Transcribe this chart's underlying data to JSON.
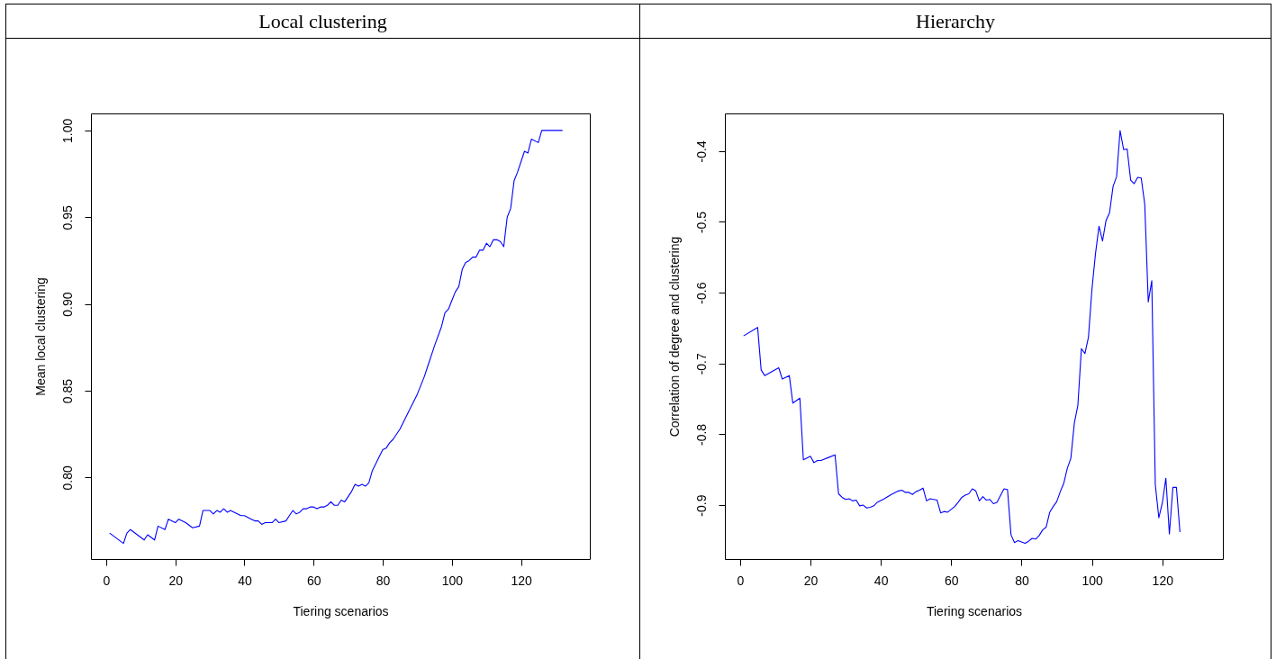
{
  "chart_data": [
    {
      "type": "line",
      "title": "Local clustering",
      "xlabel": "Tiering scenarios",
      "ylabel": "Mean local clustering",
      "xlim": [
        -4.4,
        139.9
      ],
      "ylim": [
        0.753,
        1.0098
      ],
      "xticks": [
        0,
        20,
        40,
        60,
        80,
        100,
        120
      ],
      "yticks": [
        {
          "value": 0.8,
          "label": "0.80"
        },
        {
          "value": 0.85,
          "label": "0.85"
        },
        {
          "value": 0.9,
          "label": "0.90"
        },
        {
          "value": 0.95,
          "label": "0.95"
        },
        {
          "value": 1.0,
          "label": "1.00"
        }
      ],
      "x": [
        1,
        5,
        6,
        7,
        11,
        12,
        14,
        15,
        17,
        18,
        20,
        21,
        23,
        25,
        27,
        28,
        30,
        31,
        32,
        33,
        34,
        35,
        36,
        37,
        39,
        40,
        41,
        42,
        43,
        44,
        45,
        46,
        48,
        49,
        50,
        52,
        53,
        54,
        55,
        56,
        57,
        58,
        59,
        60,
        61,
        62,
        63,
        64,
        65,
        66,
        67,
        68,
        69,
        71,
        72,
        73,
        74,
        75,
        76,
        77,
        78,
        79,
        80,
        81,
        82,
        83,
        84,
        85,
        86,
        88,
        90,
        92,
        93,
        95,
        97,
        98,
        99,
        100,
        101,
        102,
        103,
        104,
        105,
        106,
        107,
        108,
        109,
        110,
        111,
        112,
        113,
        114,
        115,
        116,
        117,
        118,
        119,
        121,
        122,
        123,
        125,
        126,
        132
      ],
      "series": [
        {
          "color": "#0000ff",
          "values": [
            0.768,
            0.762,
            0.768,
            0.77,
            0.764,
            0.767,
            0.764,
            0.772,
            0.77,
            0.776,
            0.774,
            0.776,
            0.774,
            0.771,
            0.772,
            0.781,
            0.781,
            0.779,
            0.781,
            0.78,
            0.782,
            0.78,
            0.781,
            0.78,
            0.778,
            0.778,
            0.777,
            0.776,
            0.775,
            0.775,
            0.773,
            0.774,
            0.774,
            0.776,
            0.774,
            0.775,
            0.778,
            0.781,
            0.779,
            0.78,
            0.782,
            0.782,
            0.783,
            0.783,
            0.782,
            0.783,
            0.783,
            0.784,
            0.786,
            0.784,
            0.784,
            0.787,
            0.786,
            0.792,
            0.796,
            0.795,
            0.796,
            0.795,
            0.797,
            0.804,
            0.808,
            0.812,
            0.816,
            0.817,
            0.82,
            0.822,
            0.825,
            0.828,
            0.832,
            0.84,
            0.848,
            0.858,
            0.864,
            0.876,
            0.887,
            0.895,
            0.897,
            0.902,
            0.907,
            0.91,
            0.92,
            0.924,
            0.925,
            0.927,
            0.927,
            0.931,
            0.931,
            0.935,
            0.933,
            0.937,
            0.937,
            0.936,
            0.933,
            0.95,
            0.955,
            0.971,
            0.976,
            0.988,
            0.987,
            0.995,
            0.993,
            1.0,
            1.0
          ]
        }
      ]
    },
    {
      "type": "line",
      "title": "Hierarchy",
      "xlabel": "Tiering scenarios",
      "ylabel": "Correlation of degree and clustering",
      "xlim": [
        -4.3,
        137.2
      ],
      "ylim": [
        -0.9762,
        -0.3468
      ],
      "xticks": [
        0,
        20,
        40,
        60,
        80,
        100,
        120
      ],
      "yticks": [
        -0.9,
        -0.8,
        -0.7,
        -0.6,
        -0.5,
        -0.4
      ],
      "x": [
        1,
        5,
        6,
        7,
        11,
        12,
        14,
        15,
        17,
        18,
        20,
        21,
        22,
        23,
        25,
        27,
        28,
        29,
        30,
        31,
        32,
        33,
        34,
        35,
        36,
        37,
        38,
        39,
        41,
        43,
        45,
        46,
        47,
        48,
        49,
        50,
        51,
        52,
        53,
        54,
        56,
        57,
        58,
        59,
        61,
        62,
        63,
        64,
        65,
        66,
        67,
        68,
        69,
        70,
        71,
        72,
        73,
        75,
        76,
        77,
        78,
        79,
        81,
        82,
        83,
        84,
        85,
        86,
        87,
        88,
        89,
        90,
        91,
        92,
        93,
        94,
        95,
        96,
        97,
        98,
        99,
        100,
        101,
        102,
        103,
        104,
        105,
        106,
        107,
        108,
        109,
        110,
        111,
        112,
        113,
        114,
        115,
        116,
        117,
        118,
        119,
        120,
        121,
        122,
        123,
        124,
        125
      ],
      "series": [
        {
          "color": "#0000ff",
          "values": [
            -0.661,
            -0.649,
            -0.709,
            -0.717,
            -0.706,
            -0.722,
            -0.717,
            -0.756,
            -0.749,
            -0.836,
            -0.831,
            -0.84,
            -0.837,
            -0.837,
            -0.833,
            -0.829,
            -0.884,
            -0.889,
            -0.892,
            -0.891,
            -0.894,
            -0.893,
            -0.901,
            -0.9,
            -0.904,
            -0.903,
            -0.901,
            -0.896,
            -0.891,
            -0.885,
            -0.88,
            -0.879,
            -0.882,
            -0.882,
            -0.885,
            -0.881,
            -0.879,
            -0.876,
            -0.894,
            -0.891,
            -0.893,
            -0.911,
            -0.909,
            -0.91,
            -0.902,
            -0.896,
            -0.889,
            -0.886,
            -0.884,
            -0.877,
            -0.88,
            -0.894,
            -0.888,
            -0.893,
            -0.892,
            -0.898,
            -0.896,
            -0.877,
            -0.878,
            -0.942,
            -0.953,
            -0.95,
            -0.954,
            -0.951,
            -0.947,
            -0.948,
            -0.943,
            -0.935,
            -0.931,
            -0.91,
            -0.902,
            -0.895,
            -0.881,
            -0.869,
            -0.848,
            -0.834,
            -0.784,
            -0.759,
            -0.679,
            -0.686,
            -0.663,
            -0.595,
            -0.545,
            -0.506,
            -0.527,
            -0.498,
            -0.487,
            -0.45,
            -0.436,
            -0.371,
            -0.398,
            -0.397,
            -0.441,
            -0.446,
            -0.437,
            -0.438,
            -0.475,
            -0.613,
            -0.583,
            -0.871,
            -0.918,
            -0.897,
            -0.862,
            -0.941,
            -0.875,
            -0.875,
            -0.938
          ]
        }
      ]
    }
  ]
}
